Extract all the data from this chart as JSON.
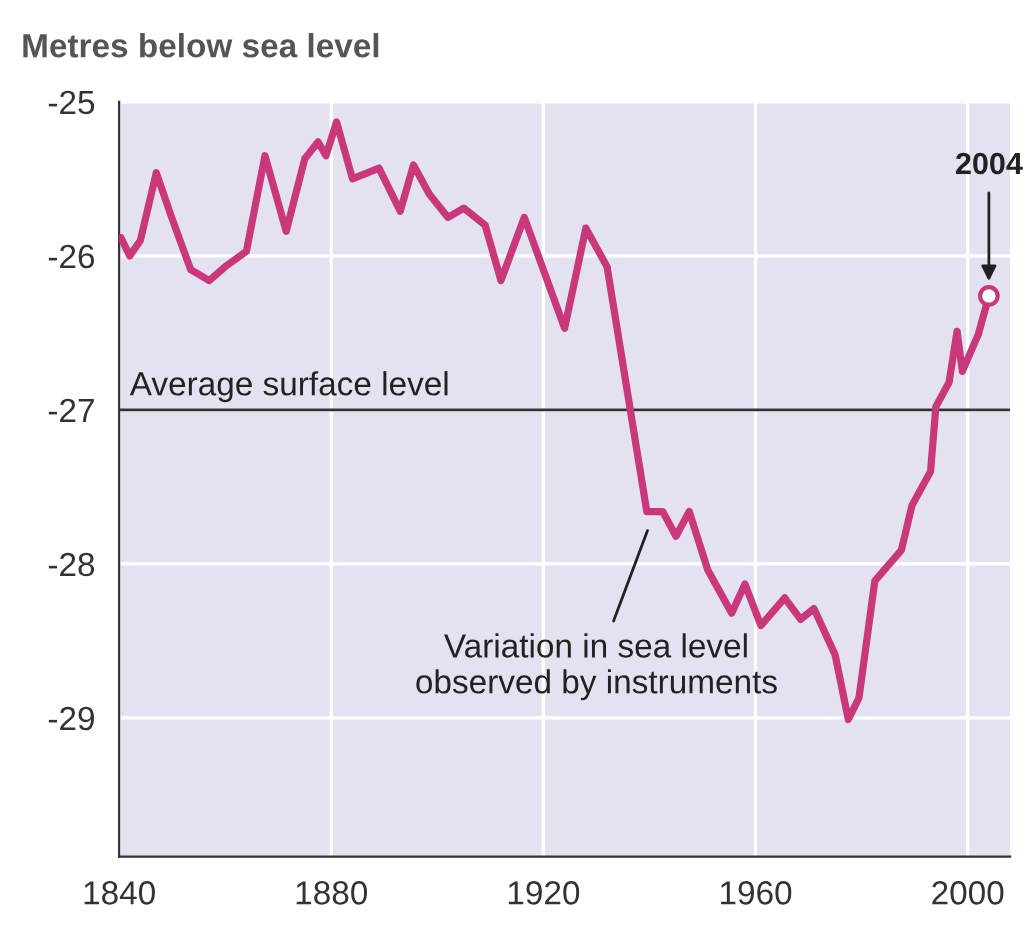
{
  "chart_data": {
    "type": "line",
    "ylabel": "Metres below sea level",
    "series": [
      {
        "color": "#c8387a",
        "marker": "none",
        "x": [
          1840.3,
          1842,
          1844,
          1847,
          1850,
          1853.5,
          1857,
          1860,
          1864,
          1867.5,
          1871.5,
          1875,
          1877.5,
          1879,
          1881,
          1884,
          1889,
          1893,
          1895.5,
          1898.5,
          1902,
          1905,
          1909,
          1912,
          1916.4,
          1924,
          1928,
          1932,
          1939.5,
          1942.5,
          1945,
          1947.5,
          1951,
          1955.5,
          1958,
          1961,
          1965.5,
          1968.5,
          1971,
          1975,
          1977.5,
          1979.5,
          1982.5,
          1987.5,
          1989.5,
          1993,
          1994,
          1996.5,
          1998,
          1999,
          2002,
          2004
        ],
        "values": [
          -25.88,
          -26.0,
          -25.9,
          -25.46,
          -25.76,
          -26.09,
          -26.16,
          -26.07,
          -25.97,
          -25.35,
          -25.84,
          -25.37,
          -25.26,
          -25.35,
          -25.13,
          -25.5,
          -25.43,
          -25.71,
          -25.41,
          -25.6,
          -25.75,
          -25.69,
          -25.8,
          -26.16,
          -25.75,
          -26.47,
          -25.82,
          -26.07,
          -27.66,
          -27.66,
          -27.82,
          -27.66,
          -28.04,
          -28.32,
          -28.13,
          -28.4,
          -28.22,
          -28.36,
          -28.29,
          -28.59,
          -29.01,
          -28.87,
          -28.11,
          -27.91,
          -27.62,
          -27.4,
          -26.98,
          -26.82,
          -26.49,
          -26.75,
          -26.51,
          -26.26
        ]
      },
      {
        "type": "scatter",
        "color": "#c8387a",
        "marker": "circle",
        "x": [
          2004
        ],
        "values": [
          -26.26
        ]
      }
    ],
    "xlim": [
      1840,
      2008
    ],
    "xticks": [
      1840,
      1880,
      1920,
      1960,
      2000
    ],
    "ylim": [
      -29.9,
      -25
    ],
    "yticks": [
      -25,
      -26,
      -27,
      -28,
      -29
    ],
    "grid": true,
    "ref_lines": [
      {
        "axis": "y",
        "value": -27,
        "label": "Average surface level",
        "color": "#333333"
      }
    ],
    "annotations": [
      {
        "text": "2004",
        "x": 2004,
        "y": -26.26
      },
      {
        "text": "Variation in sea level\nobserved by instruments",
        "x": 1940,
        "y": -27.7
      }
    ]
  }
}
